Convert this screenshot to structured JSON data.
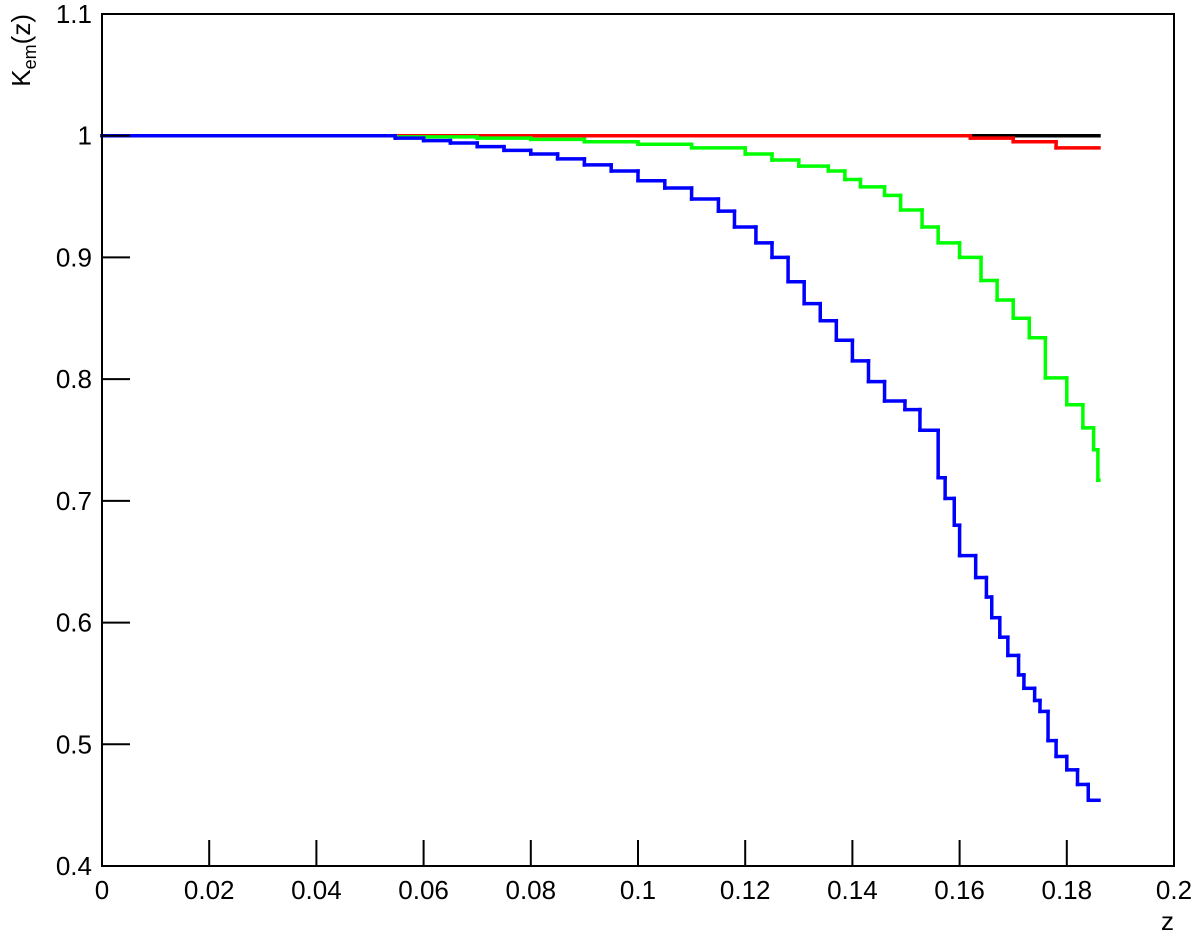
{
  "chart_data": {
    "type": "step",
    "x_label": "z",
    "y_label": {
      "main": "K",
      "sub": "em",
      "suffix": "(z)"
    },
    "xlim": [
      0,
      0.2
    ],
    "xticks": [
      0,
      0.02,
      0.04,
      0.06,
      0.08,
      0.1,
      0.12,
      0.14,
      0.16,
      0.18,
      0.2
    ],
    "ylim": [
      0.4,
      1.1
    ],
    "yticks": [
      0.4,
      0.5,
      0.6,
      0.7,
      0.8,
      0.9,
      1,
      1.1
    ],
    "series": [
      {
        "color": "#000000",
        "bins": [
          0,
          0.186
        ],
        "values": [
          1
        ]
      },
      {
        "color": "#ff0000",
        "bins": [
          0,
          0.162,
          0.17,
          0.178,
          0.186
        ],
        "values": [
          1,
          0.998,
          0.995,
          0.99
        ]
      },
      {
        "color": "#00ff00",
        "bins": [
          0,
          0.0547,
          0.07,
          0.08,
          0.09,
          0.1,
          0.11,
          0.12,
          0.125,
          0.13,
          0.1355,
          0.1386,
          0.1415,
          0.146,
          0.149,
          0.153,
          0.156,
          0.16,
          0.164,
          0.167,
          0.17,
          0.173,
          0.176,
          0.18,
          0.183,
          0.185,
          0.1858,
          0.186
        ],
        "values": [
          1,
          0.999,
          0.998,
          0.997,
          0.995,
          0.993,
          0.99,
          0.985,
          0.98,
          0.975,
          0.971,
          0.964,
          0.958,
          0.951,
          0.939,
          0.925,
          0.912,
          0.9,
          0.881,
          0.865,
          0.85,
          0.834,
          0.801,
          0.779,
          0.76,
          0.742,
          0.717
        ]
      },
      {
        "color": "#0000ff",
        "bins": [
          0,
          0.0547,
          0.06,
          0.065,
          0.07,
          0.075,
          0.08,
          0.085,
          0.09,
          0.095,
          0.1,
          0.105,
          0.11,
          0.115,
          0.118,
          0.122,
          0.125,
          0.128,
          0.131,
          0.134,
          0.137,
          0.14,
          0.143,
          0.146,
          0.1498,
          0.1526,
          0.156,
          0.1573,
          0.159,
          0.16,
          0.163,
          0.165,
          0.166,
          0.1675,
          0.169,
          0.171,
          0.172,
          0.174,
          0.175,
          0.1765,
          0.178,
          0.18,
          0.182,
          0.184,
          0.186
        ],
        "values": [
          1,
          0.998,
          0.996,
          0.994,
          0.991,
          0.988,
          0.985,
          0.981,
          0.976,
          0.971,
          0.963,
          0.957,
          0.948,
          0.938,
          0.925,
          0.912,
          0.9,
          0.88,
          0.862,
          0.848,
          0.832,
          0.815,
          0.798,
          0.782,
          0.775,
          0.758,
          0.719,
          0.702,
          0.68,
          0.655,
          0.637,
          0.621,
          0.604,
          0.588,
          0.573,
          0.557,
          0.546,
          0.536,
          0.527,
          0.503,
          0.49,
          0.479,
          0.467,
          0.454
        ]
      }
    ]
  }
}
